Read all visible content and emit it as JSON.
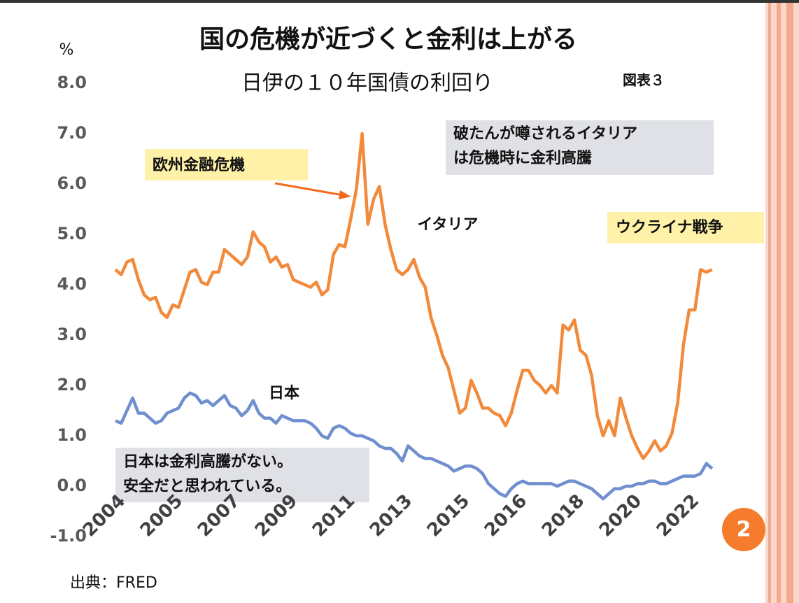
{
  "chart_data": {
    "type": "line",
    "title": "国の危機が近づくと金利は上がる",
    "subtitle": "日伊の１０年国債の利回り",
    "figure_label": "図表３",
    "y_unit": "%",
    "source": "出典：FRED",
    "page_number": "2",
    "categories": [
      "2004",
      null,
      null,
      null,
      null,
      null,
      null,
      null,
      null,
      null,
      "2005",
      null,
      null,
      null,
      null,
      null,
      null,
      null,
      null,
      null,
      "2007",
      null,
      null,
      null,
      null,
      null,
      null,
      null,
      null,
      null,
      "2009",
      null,
      null,
      null,
      null,
      null,
      null,
      null,
      null,
      null,
      "2011",
      null,
      null,
      null,
      null,
      null,
      null,
      null,
      null,
      null,
      "2013",
      null,
      null,
      null,
      null,
      null,
      null,
      null,
      null,
      null,
      "2015",
      null,
      null,
      null,
      null,
      null,
      null,
      null,
      null,
      null,
      "2016",
      null,
      null,
      null,
      null,
      null,
      null,
      null,
      null,
      null,
      "2018",
      null,
      null,
      null,
      null,
      null,
      null,
      null,
      null,
      null,
      "2020",
      null,
      null,
      null,
      null,
      null,
      null,
      null,
      null,
      null,
      "2022",
      null,
      null,
      null,
      null
    ],
    "series": [
      {
        "name": "イタリア",
        "color": "#f28a3c",
        "values": [
          4.3,
          4.2,
          4.45,
          4.5,
          4.1,
          3.8,
          3.7,
          3.75,
          3.45,
          3.35,
          3.6,
          3.55,
          3.9,
          4.25,
          4.3,
          4.05,
          4.0,
          4.25,
          4.25,
          4.7,
          4.6,
          4.5,
          4.4,
          4.55,
          5.05,
          4.85,
          4.75,
          4.45,
          4.55,
          4.35,
          4.4,
          4.1,
          4.05,
          4.0,
          3.95,
          4.05,
          3.8,
          3.9,
          4.6,
          4.8,
          4.75,
          5.3,
          5.9,
          7.0,
          5.2,
          5.7,
          5.95,
          5.2,
          4.7,
          4.3,
          4.2,
          4.3,
          4.5,
          4.15,
          3.95,
          3.35,
          3.0,
          2.6,
          2.35,
          1.9,
          1.45,
          1.55,
          2.1,
          1.85,
          1.55,
          1.55,
          1.45,
          1.4,
          1.2,
          1.45,
          1.9,
          2.3,
          2.3,
          2.1,
          2.0,
          1.85,
          2.0,
          1.85,
          3.2,
          3.1,
          3.3,
          2.7,
          2.6,
          2.2,
          1.4,
          1.0,
          1.3,
          1.0,
          1.75,
          1.35,
          1.0,
          0.75,
          0.55,
          0.7,
          0.9,
          0.7,
          0.8,
          1.05,
          1.65,
          2.8,
          3.5,
          3.5,
          4.3,
          4.25,
          4.3
        ]
      },
      {
        "name": "日本",
        "color": "#6f8fcf",
        "values": [
          1.3,
          1.25,
          1.5,
          1.75,
          1.45,
          1.45,
          1.35,
          1.25,
          1.3,
          1.45,
          1.5,
          1.55,
          1.75,
          1.85,
          1.8,
          1.65,
          1.7,
          1.6,
          1.7,
          1.8,
          1.6,
          1.55,
          1.4,
          1.5,
          1.7,
          1.45,
          1.35,
          1.35,
          1.25,
          1.4,
          1.35,
          1.3,
          1.3,
          1.3,
          1.25,
          1.15,
          1.0,
          0.95,
          1.15,
          1.2,
          1.15,
          1.05,
          1.0,
          1.0,
          0.95,
          0.9,
          0.8,
          0.75,
          0.75,
          0.65,
          0.5,
          0.8,
          0.7,
          0.6,
          0.55,
          0.55,
          0.5,
          0.45,
          0.4,
          0.3,
          0.35,
          0.4,
          0.4,
          0.35,
          0.25,
          0.05,
          -0.05,
          -0.15,
          -0.2,
          -0.05,
          0.05,
          0.1,
          0.05,
          0.05,
          0.05,
          0.05,
          0.05,
          0.0,
          0.05,
          0.1,
          0.1,
          0.05,
          0.0,
          -0.05,
          -0.15,
          -0.25,
          -0.15,
          -0.05,
          -0.05,
          0.0,
          0.0,
          0.05,
          0.05,
          0.1,
          0.1,
          0.05,
          0.05,
          0.1,
          0.15,
          0.2,
          0.2,
          0.2,
          0.25,
          0.45,
          0.35
        ]
      }
    ],
    "ylim": [
      -1,
      8
    ],
    "yticks": [
      {
        "value": 8,
        "label": "8.0"
      },
      {
        "value": 7,
        "label": "7.0"
      },
      {
        "value": 6,
        "label": "6.0"
      },
      {
        "value": 5,
        "label": "5.0"
      },
      {
        "value": 4,
        "label": "4.0"
      },
      {
        "value": 3,
        "label": "3.0"
      },
      {
        "value": 2,
        "label": "2.0"
      },
      {
        "value": 1,
        "label": "1.0"
      },
      {
        "value": 0,
        "label": "0.0"
      },
      {
        "value": -1,
        "label": "-1.0"
      }
    ],
    "grid": false,
    "annotations": [
      {
        "lines": [
          "欧州金融危機"
        ]
      },
      {
        "lines": [
          "破たんが噂されるイタリア",
          "は危機時に金利高騰"
        ]
      },
      {
        "lines": [
          "ウクライナ戦争"
        ]
      },
      {
        "lines": [
          "日本は金利高騰がない。",
          "安全だと思われている。"
        ]
      }
    ]
  }
}
